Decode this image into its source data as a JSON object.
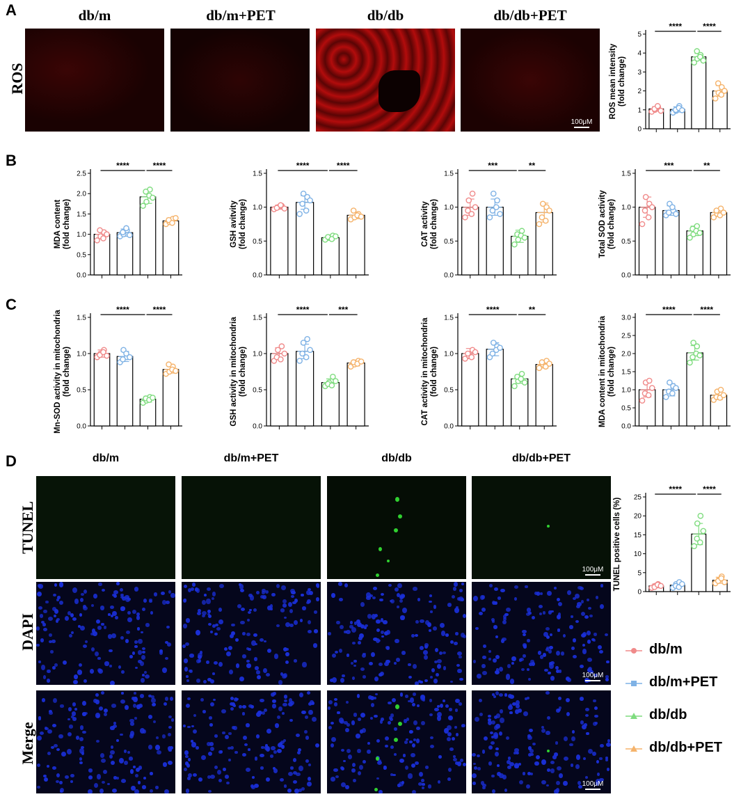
{
  "panels": {
    "A": "A",
    "B": "B",
    "C": "C",
    "D": "D"
  },
  "groups": [
    "db/m",
    "db/m+PET",
    "db/db",
    "db/db+PET"
  ],
  "rows": {
    "ros": "ROS",
    "tunel": "TUNEL",
    "dapi": "DAPI",
    "merge": "Merge"
  },
  "scale_bar": "100μM",
  "colors": {
    "db/m": "#f08a8a",
    "db/m+PET": "#7fb2e5",
    "db/db": "#7fdc7f",
    "db/db+PET": "#f5b36b",
    "ros_stain": "#d41010",
    "tunel_stain": "#30d030",
    "dapi_stain": "#1a2fd8"
  },
  "icons": {
    "legend_marker": "dot-with-line"
  },
  "chart_data": [
    {
      "id": "ros",
      "type": "bar",
      "categories": [
        "db/m",
        "db/m+PET",
        "db/db",
        "db/db+PET"
      ],
      "values": [
        1.05,
        1.02,
        3.8,
        2.0
      ],
      "errors": [
        0.12,
        0.14,
        0.18,
        0.28
      ],
      "points": [
        [
          0.9,
          1.0,
          1.15,
          1.05,
          1.2,
          0.95
        ],
        [
          0.85,
          0.95,
          1.2,
          1.0,
          1.1,
          0.98
        ],
        [
          3.5,
          3.7,
          3.9,
          4.1,
          3.8,
          3.6
        ],
        [
          1.6,
          1.9,
          2.2,
          2.4,
          1.8,
          2.0
        ]
      ],
      "ylabel": "ROS mean intensity\n(fold change)",
      "yticks": [
        "0",
        "1",
        "2",
        "3",
        "4",
        "5"
      ],
      "ylim": [
        0,
        5
      ],
      "sig": [
        {
          "from": 0,
          "to": 2,
          "label": "****"
        },
        {
          "from": 2,
          "to": 3,
          "label": "****"
        }
      ]
    },
    {
      "id": "mda",
      "type": "bar",
      "categories": [
        "db/m",
        "db/m+PET",
        "db/db",
        "db/db+PET"
      ],
      "values": [
        1.0,
        1.04,
        1.92,
        1.33
      ],
      "errors": [
        0.1,
        0.09,
        0.16,
        0.07
      ],
      "points": [
        [
          0.85,
          0.95,
          1.05,
          1.1,
          0.9,
          1.0
        ],
        [
          0.95,
          1.0,
          1.1,
          1.05,
          1.15,
          0.98
        ],
        [
          1.7,
          1.8,
          2.1,
          2.05,
          1.95,
          1.9
        ],
        [
          1.25,
          1.3,
          1.38,
          1.35,
          1.28,
          1.4
        ]
      ],
      "ylabel": "MDA content\n(fold change)",
      "yticks": [
        "0.0",
        "0.5",
        "1.0",
        "1.5",
        "2.0",
        "2.5"
      ],
      "ylim": [
        0,
        2.5
      ],
      "sig": [
        {
          "from": 0,
          "to": 2,
          "label": "****"
        },
        {
          "from": 2,
          "to": 3,
          "label": "****"
        }
      ]
    },
    {
      "id": "gsh",
      "type": "bar",
      "categories": [
        "db/m",
        "db/m+PET",
        "db/db",
        "db/db+PET"
      ],
      "values": [
        1.0,
        1.07,
        0.55,
        0.88
      ],
      "errors": [
        0.03,
        0.1,
        0.04,
        0.05
      ],
      "points": [
        [
          0.97,
          1.0,
          1.02,
          0.99,
          1.03,
          0.98
        ],
        [
          0.9,
          1.2,
          1.15,
          1.05,
          0.95,
          1.1
        ],
        [
          0.52,
          0.55,
          0.58,
          0.56,
          0.53,
          0.57
        ],
        [
          0.82,
          0.85,
          0.9,
          0.95,
          0.88,
          0.86
        ]
      ],
      "ylabel": "GSH avitvity\n(fold change)",
      "yticks": [
        "0.0",
        "0.5",
        "1.0",
        "1.5"
      ],
      "ylim": [
        0,
        1.5
      ],
      "sig": [
        {
          "from": 0,
          "to": 2,
          "label": "****"
        },
        {
          "from": 2,
          "to": 3,
          "label": "****"
        }
      ]
    },
    {
      "id": "cat",
      "type": "bar",
      "categories": [
        "db/m",
        "db/m+PET",
        "db/db",
        "db/db+PET"
      ],
      "values": [
        1.0,
        1.0,
        0.57,
        0.92
      ],
      "errors": [
        0.12,
        0.12,
        0.09,
        0.14
      ],
      "points": [
        [
          0.85,
          1.1,
          1.2,
          0.95,
          0.9,
          1.0
        ],
        [
          0.85,
          1.2,
          1.1,
          0.95,
          1.0,
          0.9
        ],
        [
          0.45,
          0.52,
          0.65,
          0.6,
          0.58,
          0.55
        ],
        [
          0.75,
          1.05,
          1.0,
          0.85,
          0.8,
          0.95
        ]
      ],
      "ylabel": "CAT  activity\n(fold change)",
      "yticks": [
        "0.0",
        "0.5",
        "1.0",
        "1.5"
      ],
      "ylim": [
        0,
        1.5
      ],
      "sig": [
        {
          "from": 0,
          "to": 2,
          "label": "***"
        },
        {
          "from": 2,
          "to": 3,
          "label": "**"
        }
      ]
    },
    {
      "id": "sod",
      "type": "bar",
      "categories": [
        "db/m",
        "db/m+PET",
        "db/db",
        "db/db+PET"
      ],
      "values": [
        1.0,
        0.95,
        0.65,
        0.92
      ],
      "errors": [
        0.15,
        0.07,
        0.07,
        0.05
      ],
      "points": [
        [
          0.75,
          1.15,
          1.05,
          0.95,
          0.85,
          1.0
        ],
        [
          0.88,
          1.05,
          0.95,
          0.92,
          1.0,
          0.9
        ],
        [
          0.55,
          0.6,
          0.72,
          0.68,
          0.65,
          0.62
        ],
        [
          0.85,
          0.9,
          0.98,
          0.95,
          0.88,
          0.92
        ]
      ],
      "ylabel": "Total SOD activity\n(fold change)",
      "yticks": [
        "0.0",
        "0.5",
        "1.0",
        "1.5"
      ],
      "ylim": [
        0,
        1.5
      ],
      "sig": [
        {
          "from": 0,
          "to": 2,
          "label": "***"
        },
        {
          "from": 2,
          "to": 3,
          "label": "**"
        }
      ]
    },
    {
      "id": "mnsod",
      "type": "bar",
      "categories": [
        "db/m",
        "db/m+PET",
        "db/db",
        "db/db+PET"
      ],
      "values": [
        1.0,
        0.96,
        0.37,
        0.78
      ],
      "errors": [
        0.05,
        0.07,
        0.04,
        0.05
      ],
      "points": [
        [
          0.95,
          1.0,
          1.05,
          0.98,
          1.02,
          0.97
        ],
        [
          0.88,
          1.05,
          0.95,
          0.92,
          1.0,
          0.95
        ],
        [
          0.32,
          0.35,
          0.4,
          0.38,
          0.36,
          0.39
        ],
        [
          0.72,
          0.75,
          0.82,
          0.85,
          0.78,
          0.76
        ]
      ],
      "ylabel": "Mn-SOD activity in mitochondria\n(fold change)",
      "yticks": [
        "0.0",
        "0.5",
        "1.0",
        "1.5"
      ],
      "ylim": [
        0,
        1.5
      ],
      "sig": [
        {
          "from": 0,
          "to": 2,
          "label": "****"
        },
        {
          "from": 2,
          "to": 3,
          "label": "****"
        }
      ]
    },
    {
      "id": "gshm",
      "type": "bar",
      "categories": [
        "db/m",
        "db/m+PET",
        "db/db",
        "db/db+PET"
      ],
      "values": [
        1.0,
        1.03,
        0.6,
        0.87
      ],
      "errors": [
        0.08,
        0.1,
        0.05,
        0.04
      ],
      "points": [
        [
          0.9,
          1.05,
          1.1,
          0.95,
          0.92,
          1.0
        ],
        [
          0.9,
          1.15,
          1.2,
          1.0,
          0.95,
          1.05
        ],
        [
          0.55,
          0.6,
          0.68,
          0.58,
          0.56,
          0.62
        ],
        [
          0.82,
          0.85,
          0.9,
          0.88,
          0.86,
          0.89
        ]
      ],
      "ylabel": "GSH activity in mitochondria\n(fold change)",
      "yticks": [
        "0.0",
        "0.5",
        "1.0",
        "1.5"
      ],
      "ylim": [
        0,
        1.5
      ],
      "sig": [
        {
          "from": 0,
          "to": 2,
          "label": "****"
        },
        {
          "from": 2,
          "to": 3,
          "label": "***"
        }
      ]
    },
    {
      "id": "catm",
      "type": "bar",
      "categories": [
        "db/m",
        "db/m+PET",
        "db/db",
        "db/db+PET"
      ],
      "values": [
        1.0,
        1.06,
        0.65,
        0.85
      ],
      "errors": [
        0.07,
        0.09,
        0.06,
        0.05
      ],
      "points": [
        [
          0.93,
          0.97,
          1.05,
          1.0,
          0.95,
          1.02
        ],
        [
          0.95,
          1.15,
          1.1,
          1.0,
          1.05,
          1.08
        ],
        [
          0.55,
          0.62,
          0.72,
          0.68,
          0.65,
          0.6
        ],
        [
          0.8,
          0.85,
          0.9,
          0.88,
          0.82,
          0.86
        ]
      ],
      "ylabel": "CAT activity in mitochondria\n(fold change)",
      "yticks": [
        "0.0",
        "0.5",
        "1.0",
        "1.5"
      ],
      "ylim": [
        0,
        1.5
      ],
      "sig": [
        {
          "from": 0,
          "to": 2,
          "label": "****"
        },
        {
          "from": 2,
          "to": 3,
          "label": "**"
        }
      ]
    },
    {
      "id": "mdam",
      "type": "bar",
      "categories": [
        "db/m",
        "db/m+PET",
        "db/db",
        "db/db+PET"
      ],
      "values": [
        1.0,
        1.0,
        2.02,
        0.85
      ],
      "errors": [
        0.2,
        0.17,
        0.2,
        0.12
      ],
      "points": [
        [
          0.7,
          1.2,
          1.25,
          0.9,
          0.85,
          1.05
        ],
        [
          0.8,
          1.2,
          1.1,
          0.95,
          0.9,
          1.05
        ],
        [
          1.75,
          2.3,
          2.2,
          1.9,
          2.0,
          1.95
        ],
        [
          0.72,
          0.95,
          1.0,
          0.8,
          0.78,
          0.85
        ]
      ],
      "ylabel": "MDA content in mitochondria\n(fold change)",
      "yticks": [
        "0.0",
        "0.5",
        "1.0",
        "1.5",
        "2.0",
        "2.5",
        "3.0"
      ],
      "ylim": [
        0,
        3.0
      ],
      "sig": [
        {
          "from": 0,
          "to": 2,
          "label": "****"
        },
        {
          "from": 2,
          "to": 3,
          "label": "****"
        }
      ]
    },
    {
      "id": "tunel",
      "type": "bar",
      "categories": [
        "db/m",
        "db/m+PET",
        "db/db",
        "db/db+PET"
      ],
      "values": [
        1.5,
        1.7,
        15.2,
        3.0
      ],
      "errors": [
        0.5,
        0.6,
        2.8,
        0.8
      ],
      "points": [
        [
          1.0,
          1.5,
          2.0,
          1.2,
          1.8,
          1.5
        ],
        [
          1.0,
          2.0,
          2.5,
          1.5,
          1.2,
          2.0
        ],
        [
          12.0,
          18.0,
          20.0,
          14.0,
          13.0,
          16.0
        ],
        [
          2.2,
          3.0,
          4.0,
          2.8,
          3.5,
          2.5
        ]
      ],
      "ylabel": "TUNEL positive cells (%)",
      "yticks": [
        "0",
        "5",
        "10",
        "15",
        "20",
        "25"
      ],
      "ylim": [
        0,
        25
      ],
      "sig": [
        {
          "from": 0,
          "to": 2,
          "label": "****"
        },
        {
          "from": 2,
          "to": 3,
          "label": "****"
        }
      ]
    }
  ]
}
